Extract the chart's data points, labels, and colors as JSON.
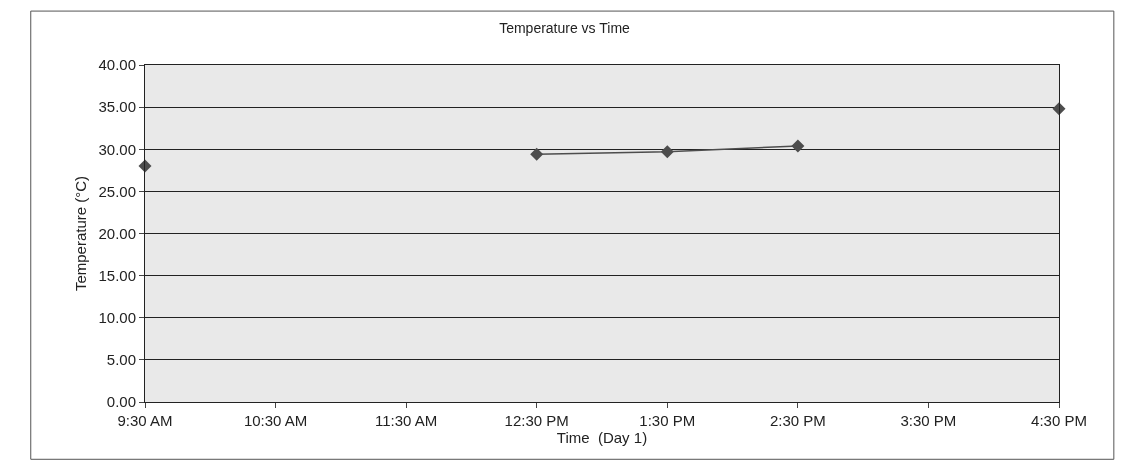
{
  "chart_data": {
    "type": "line",
    "title": "Temperature vs Time",
    "xlabel": "Time  (Day 1)",
    "ylabel": "Temperature (°C)",
    "categories": [
      "9:30 AM",
      "10:30 AM",
      "11:30 AM",
      "12:30 PM",
      "1:30 PM",
      "2:30 PM",
      "3:30 PM",
      "4:30 PM"
    ],
    "series": [
      {
        "color": "#4d4d4d",
        "values": [
          28.0,
          null,
          null,
          29.4,
          29.7,
          30.4,
          null,
          34.8
        ]
      }
    ],
    "ylim": [
      0,
      40
    ],
    "yticks": [
      {
        "value": 0,
        "label": "0.00"
      },
      {
        "value": 5,
        "label": "5.00"
      },
      {
        "value": 10,
        "label": "10.00"
      },
      {
        "value": 15,
        "label": "15.00"
      },
      {
        "value": 20,
        "label": "20.00"
      },
      {
        "value": 25,
        "label": "25.00"
      },
      {
        "value": 30,
        "label": "30.00"
      },
      {
        "value": 35,
        "label": "35.00"
      },
      {
        "value": 40,
        "label": "40.00"
      }
    ],
    "grid": "y",
    "legend": false,
    "marker": "diamond",
    "line_style": "solid"
  }
}
